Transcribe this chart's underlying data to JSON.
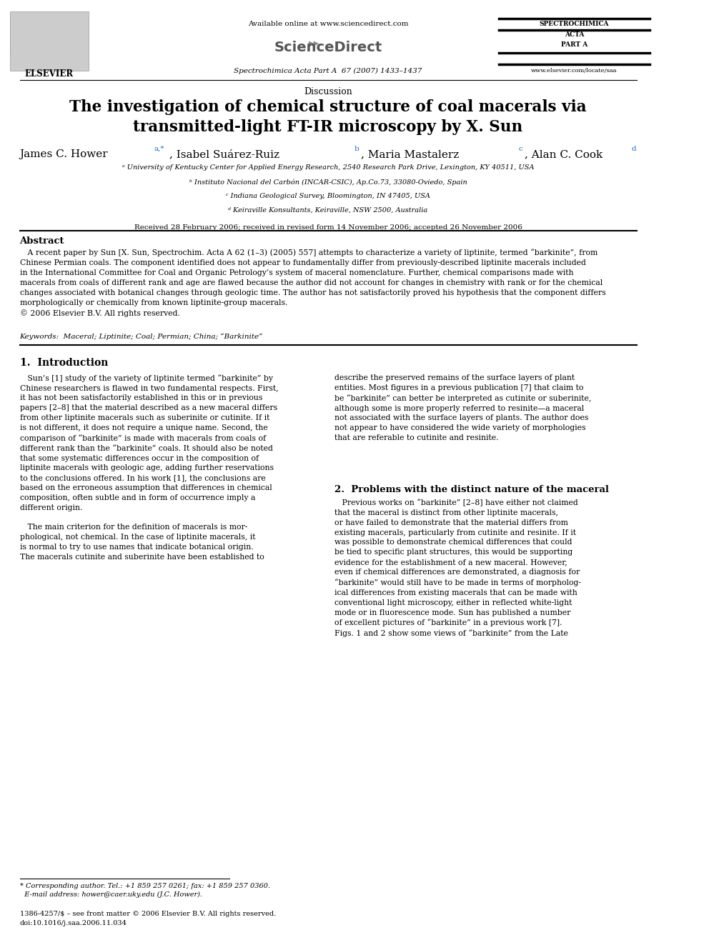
{
  "background_color": "#ffffff",
  "page_width": 9.92,
  "page_height": 13.23,
  "dpi": 100,
  "header": {
    "available_online": "Available online at www.sciencedirect.com",
    "journal_name": "Spectrochimica Acta Part A  67 (2007) 1433–1437",
    "journal_right_top": "SPECTROCHIMICA\nACTA\n\nPART A",
    "journal_url": "www.elsevier.com/locate/saa",
    "elsevier_label": "ELSEVIER"
  },
  "section": "Discussion",
  "title": "The investigation of chemical structure of coal macerals via\ntransmitted-light FT-IR microscopy by X. Sun",
  "affiliations": [
    "ᵃ University of Kentucky Center for Applied Energy Research, 2540 Research Park Drive, Lexington, KY 40511, USA",
    "ᵇ Instituto Nacional del Carbón (INCAR-CSIC), Ap.Co.73, 33080-Oviedo, Spain",
    "ᶜ Indiana Geological Survey, Bloomington, IN 47405, USA",
    "ᵈ Keiraville Konsultants, Keiraville, NSW 2500, Australia"
  ],
  "received": "Received 28 February 2006; received in revised form 14 November 2006; accepted 26 November 2006",
  "abstract_title": "Abstract",
  "keywords": "Keywords:  Maceral; Liptinite; Coal; Permian; China; “Barkinite”",
  "section1_title": "1.  Introduction",
  "section2_title": "2.  Problems with the distinct nature of the maceral",
  "footnote_corresponding": "* Corresponding author. Tel.: +1 859 257 0261; fax: +1 859 257 0360.\n  E-mail address: hower@caer.uky.edu (J.C. Hower).",
  "footnote_issn": "1386-4257/$ – see front matter © 2006 Elsevier B.V. All rights reserved.\ndoi:10.1016/j.saa.2006.11.034",
  "link_color": "#1a66cc"
}
